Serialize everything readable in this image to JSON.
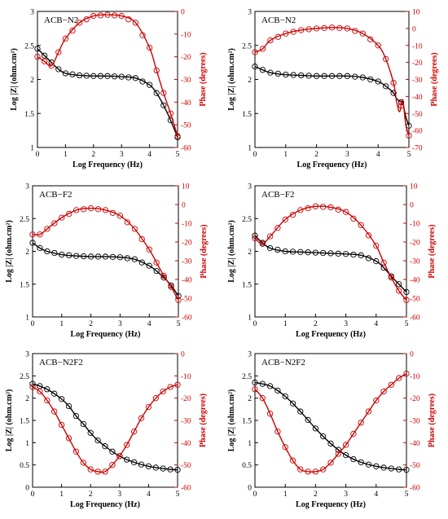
{
  "chart_data": [
    {
      "type": "line",
      "title": "ACB−N2",
      "xlabel": "Log Frequency (Hz)",
      "ylabel": "Log |Z| (ohm.cm²)",
      "ylabel2": "Phase (degrees)",
      "xlim": [
        0,
        5
      ],
      "ylim": [
        1,
        3
      ],
      "y2lim": [
        -60,
        0
      ],
      "xticks": [
        0,
        1,
        2,
        3,
        4,
        5
      ],
      "yticks": [
        1,
        1.5,
        2,
        2.5,
        3
      ],
      "y2ticks": [
        -60,
        -50,
        -40,
        -30,
        -20,
        -10,
        0
      ],
      "x": [
        0,
        0.25,
        0.5,
        0.75,
        1,
        1.5,
        2,
        2.5,
        3,
        3.5,
        4,
        4.25,
        4.5,
        4.75,
        5
      ],
      "series": [
        {
          "axis": "left",
          "color": "#000000",
          "values": [
            2.45,
            2.35,
            2.25,
            2.15,
            2.09,
            2.06,
            2.05,
            2.05,
            2.04,
            2.02,
            1.92,
            1.8,
            1.62,
            1.4,
            1.15
          ]
        },
        {
          "axis": "right",
          "color": "#cc0000",
          "values": [
            -20,
            -22,
            -24,
            -18,
            -12,
            -5,
            -2,
            -1.5,
            -2,
            -5,
            -16,
            -26,
            -36,
            -45,
            -55
          ]
        }
      ]
    },
    {
      "type": "line",
      "title": "ACB−N2",
      "xlabel": "Log Frequency (Hz)",
      "ylabel": "Log |Z| (ohm.cm²)",
      "ylabel2": "Phase (degrees)",
      "xlim": [
        0,
        5
      ],
      "ylim": [
        1,
        3
      ],
      "y2lim": [
        -70,
        10
      ],
      "xticks": [
        0,
        1,
        2,
        3,
        4,
        5
      ],
      "yticks": [
        1,
        1.5,
        2,
        2.5,
        3
      ],
      "y2ticks": [
        -70,
        -60,
        -50,
        -40,
        -30,
        -20,
        -10,
        0,
        10
      ],
      "x": [
        0,
        0.25,
        0.5,
        1,
        1.5,
        2,
        2.5,
        3,
        3.5,
        4,
        4.25,
        4.5,
        4.6,
        4.7,
        4.8,
        4.9,
        5
      ],
      "series": [
        {
          "axis": "left",
          "color": "#000000",
          "values": [
            2.19,
            2.14,
            2.1,
            2.07,
            2.06,
            2.05,
            2.05,
            2.05,
            2.03,
            1.97,
            1.9,
            1.8,
            1.72,
            1.68,
            1.65,
            1.45,
            1.32
          ]
        },
        {
          "axis": "right",
          "color": "#cc0000",
          "values": [
            -14,
            -12,
            -7,
            -3,
            -1,
            0,
            0.5,
            0,
            -3,
            -10,
            -18,
            -32,
            -43,
            -49,
            -42,
            -57,
            -63
          ]
        }
      ]
    },
    {
      "type": "line",
      "title": "ACB−F2",
      "xlabel": "Log Frequency (Hz)",
      "ylabel": "Log |Z| (ohm.cm²)",
      "ylabel2": "Phase (degrees)",
      "xlim": [
        0,
        5
      ],
      "ylim": [
        1,
        3
      ],
      "y2lim": [
        -60,
        10
      ],
      "xticks": [
        0,
        1,
        2,
        3,
        4,
        5
      ],
      "yticks": [
        1,
        1.5,
        2,
        2.5,
        3
      ],
      "y2ticks": [
        -60,
        -50,
        -40,
        -30,
        -20,
        -10,
        0,
        10
      ],
      "x": [
        0,
        0.25,
        0.5,
        1,
        1.5,
        2,
        2.5,
        3,
        3.5,
        4,
        4.25,
        4.5,
        4.75,
        5
      ],
      "series": [
        {
          "axis": "left",
          "color": "#000000",
          "values": [
            2.13,
            2.05,
            2.0,
            1.95,
            1.93,
            1.92,
            1.92,
            1.91,
            1.88,
            1.78,
            1.7,
            1.6,
            1.48,
            1.32
          ]
        },
        {
          "axis": "right",
          "color": "#cc0000",
          "values": [
            -16,
            -16,
            -13,
            -7,
            -3,
            -2,
            -3,
            -6,
            -13,
            -24,
            -31,
            -38,
            -44,
            -51
          ]
        }
      ]
    },
    {
      "type": "line",
      "title": "ACB−F2",
      "xlabel": "Log Frequency (Hz)",
      "ylabel": "Log |Z| (ohm.cm²)",
      "ylabel2": "Phase (degrees)",
      "xlim": [
        0,
        5
      ],
      "ylim": [
        1,
        3
      ],
      "y2lim": [
        -60,
        10
      ],
      "xticks": [
        0,
        1,
        2,
        3,
        4,
        5
      ],
      "yticks": [
        1,
        1.5,
        2,
        2.5,
        3
      ],
      "y2ticks": [
        -60,
        -50,
        -40,
        -30,
        -20,
        -10,
        0,
        10
      ],
      "x": [
        0,
        0.25,
        0.5,
        1,
        1.5,
        2,
        2.5,
        3,
        3.5,
        4,
        4.25,
        4.5,
        4.75,
        5
      ],
      "series": [
        {
          "axis": "left",
          "color": "#000000",
          "values": [
            2.24,
            2.13,
            2.05,
            2.0,
            1.99,
            1.98,
            1.97,
            1.96,
            1.94,
            1.85,
            1.75,
            1.62,
            1.5,
            1.38
          ]
        },
        {
          "axis": "right",
          "color": "#cc0000",
          "values": [
            -18,
            -21,
            -17,
            -8,
            -3,
            -1,
            -1.5,
            -4,
            -11,
            -22,
            -31,
            -39,
            -46,
            -51
          ]
        }
      ]
    },
    {
      "type": "line",
      "title": "ACB−N2F2",
      "xlabel": "Log Frequency (Hz)",
      "ylabel": "Log |Z| (ohm.cm²)",
      "ylabel2": "Phase (degrees)",
      "xlim": [
        0,
        5
      ],
      "ylim": [
        0,
        3
      ],
      "y2lim": [
        -60,
        0
      ],
      "xticks": [
        0,
        1,
        2,
        3,
        4,
        5
      ],
      "yticks": [
        0,
        0.5,
        1,
        1.5,
        2,
        2.5,
        3
      ],
      "y2ticks": [
        -60,
        -50,
        -40,
        -30,
        -20,
        -10,
        0
      ],
      "x": [
        0,
        0.25,
        0.5,
        0.75,
        1,
        1.25,
        1.5,
        1.75,
        2,
        2.25,
        2.5,
        2.75,
        3,
        3.25,
        3.5,
        3.75,
        4,
        4.25,
        4.5,
        4.75,
        5
      ],
      "series": [
        {
          "axis": "left",
          "color": "#000000",
          "values": [
            2.32,
            2.27,
            2.2,
            2.1,
            1.98,
            1.82,
            1.6,
            1.42,
            1.22,
            1.05,
            0.92,
            0.8,
            0.7,
            0.62,
            0.56,
            0.51,
            0.47,
            0.44,
            0.42,
            0.4,
            0.39
          ]
        },
        {
          "axis": "right",
          "color": "#cc0000",
          "values": [
            -15,
            -17,
            -21,
            -26,
            -32,
            -38,
            -44,
            -49,
            -52,
            -53,
            -53,
            -50,
            -46,
            -41,
            -35,
            -29,
            -24,
            -20,
            -17,
            -15,
            -14
          ]
        }
      ]
    },
    {
      "type": "line",
      "title": "ACB−N2F2",
      "xlabel": "Log Frequency (Hz)",
      "ylabel": "Log |Z| (ohm.cm²)",
      "ylabel2": "Phase (degrees)",
      "xlim": [
        0,
        5
      ],
      "ylim": [
        0,
        3
      ],
      "y2lim": [
        -60,
        0
      ],
      "xticks": [
        0,
        1,
        2,
        3,
        4,
        5
      ],
      "yticks": [
        0,
        0.5,
        1,
        1.5,
        2,
        2.5,
        3
      ],
      "y2ticks": [
        -60,
        -50,
        -40,
        -30,
        -20,
        -10,
        0
      ],
      "x": [
        0,
        0.25,
        0.5,
        0.75,
        1,
        1.25,
        1.5,
        1.75,
        2,
        2.25,
        2.5,
        2.75,
        3,
        3.25,
        3.5,
        3.75,
        4,
        4.25,
        4.5,
        4.75,
        5
      ],
      "series": [
        {
          "axis": "left",
          "color": "#000000",
          "values": [
            2.35,
            2.32,
            2.27,
            2.17,
            2.04,
            1.88,
            1.7,
            1.51,
            1.32,
            1.14,
            0.98,
            0.84,
            0.72,
            0.63,
            0.56,
            0.51,
            0.47,
            0.44,
            0.42,
            0.4,
            0.39
          ]
        },
        {
          "axis": "right",
          "color": "#cc0000",
          "values": [
            -16,
            -20,
            -27,
            -35,
            -42,
            -48,
            -52,
            -53,
            -53,
            -52,
            -49,
            -45,
            -41,
            -36,
            -31,
            -26,
            -21,
            -17,
            -14,
            -11,
            -9
          ]
        }
      ]
    }
  ]
}
